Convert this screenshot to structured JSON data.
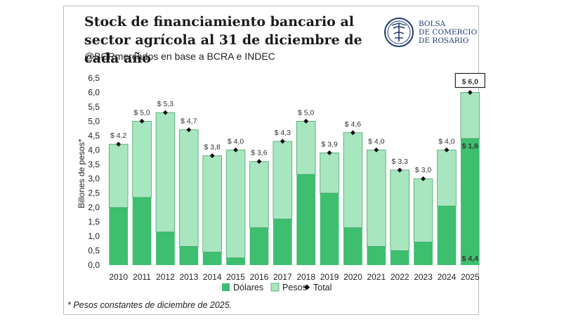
{
  "header": {
    "title": "Stock de financiamiento bancario al sector agrícola al 31 de diciembre de cada año",
    "subtitle": "@BCRmercados  en base a BCRA e INDEC"
  },
  "logo": {
    "line1": "BOLSA",
    "line2": "DE COMERCIO",
    "line3": "DE ROSARIO"
  },
  "footnote": "* Pesos constantes de diciembre de 2025.",
  "colors": {
    "dolares": "#3dbf6f",
    "pesos": "#a8e6c0",
    "bar_stroke": "#4aa36a",
    "total_marker": "#111111",
    "brand": "#1f3b73"
  },
  "chart_data": {
    "type": "bar",
    "stacked": true,
    "categories": [
      "2010",
      "2011",
      "2012",
      "2013",
      "2014",
      "2015",
      "2016",
      "2017",
      "2018",
      "2019",
      "2020",
      "2021",
      "2022",
      "2023",
      "2024",
      "2025"
    ],
    "series": [
      {
        "name": "Dólares",
        "values": [
          2.0,
          2.35,
          1.15,
          0.65,
          0.45,
          0.25,
          1.3,
          1.6,
          3.15,
          2.5,
          1.3,
          0.65,
          0.5,
          0.8,
          2.05,
          4.4
        ]
      },
      {
        "name": "Pesos",
        "values": [
          2.2,
          2.65,
          4.15,
          4.05,
          3.35,
          3.75,
          2.3,
          2.7,
          1.85,
          1.4,
          3.3,
          3.35,
          2.8,
          2.2,
          1.95,
          1.6
        ]
      }
    ],
    "totals": [
      4.2,
      5.0,
      5.3,
      4.7,
      3.8,
      4.0,
      3.6,
      4.3,
      5.0,
      3.9,
      4.6,
      4.0,
      3.3,
      3.0,
      4.0,
      6.0
    ],
    "total_labels": [
      "$ 4,2",
      "$ 5,0",
      "$ 5,3",
      "$ 4,7",
      "$ 3,8",
      "$ 4,0",
      "$ 3,6",
      "$ 4,3",
      "$ 5,0",
      "$ 3,9",
      "$ 4,6",
      "$ 4,0",
      "$ 3,3",
      "$ 3,0",
      "$ 4,0",
      "$ 6,0"
    ],
    "highlight_labels": {
      "pesos_2025": "$ 1,6",
      "dolares_2025": "$ 4,4"
    },
    "legend": [
      "Dólares",
      "Pesos",
      "Total"
    ],
    "ylabel": "Billones de pesos*",
    "ylim": [
      0,
      6.5
    ],
    "yticks": [
      "0,0",
      "0,5",
      "1,0",
      "1,5",
      "2,0",
      "2,5",
      "3,0",
      "3,5",
      "4,0",
      "4,5",
      "5,0",
      "5,5",
      "6,0",
      "6,5"
    ],
    "legend_position": "bottom",
    "grid": false
  }
}
